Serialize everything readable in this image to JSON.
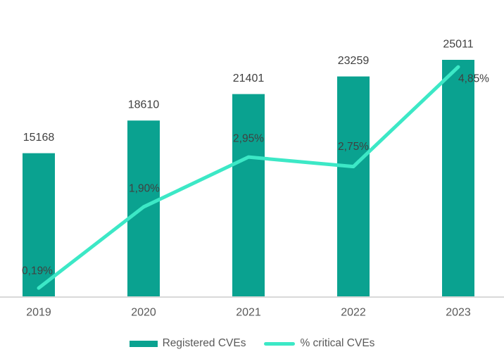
{
  "chart_data": {
    "type": "combo",
    "title": "",
    "xlabel": "",
    "ylabel": "",
    "categories": [
      "2019",
      "2020",
      "2021",
      "2022",
      "2023"
    ],
    "series": [
      {
        "name": "Registered CVEs",
        "type": "bar",
        "color": "#0aa290",
        "values": [
          15168,
          18610,
          21401,
          23259,
          25011
        ],
        "labels": [
          "15168",
          "18610",
          "21401",
          "23259",
          "25011"
        ]
      },
      {
        "name": "% critical CVEs",
        "type": "line",
        "color": "#3ce8c6",
        "values": [
          0.19,
          1.9,
          2.95,
          2.75,
          4.85
        ],
        "labels": [
          "0,19%",
          "1,90%",
          "2,95%",
          "2,75%",
          "4,85%"
        ],
        "label_offsets": [
          [
            -2,
            -24
          ],
          [
            1,
            -26
          ],
          [
            0,
            -26
          ],
          [
            0,
            -28
          ],
          [
            22,
            17
          ]
        ]
      }
    ],
    "ylim": [
      0,
      25011
    ],
    "y2lim": [
      0,
      5
    ],
    "grid": false,
    "legend_position": "bottom",
    "colors": {
      "axis_line": "#d9d9d9",
      "data_label": "#404040",
      "tick_label": "#595959",
      "background": "#ffffff"
    }
  }
}
